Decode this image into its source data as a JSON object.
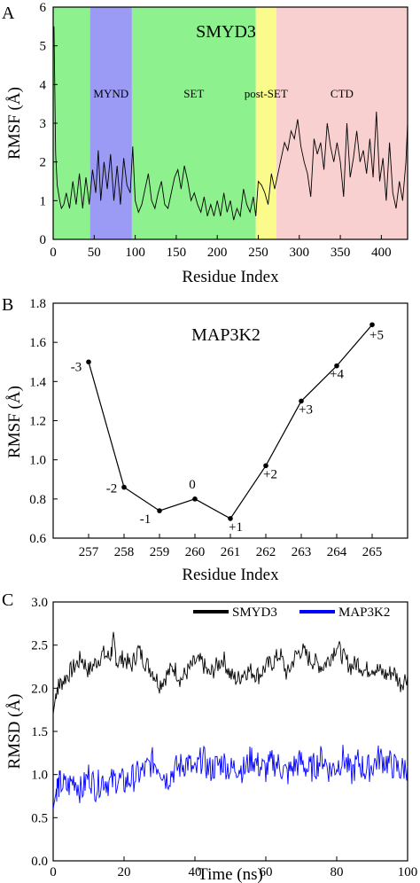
{
  "figure": {
    "panels": {
      "a": "A",
      "b": "B",
      "c": "C"
    }
  },
  "chart_data": [
    {
      "type": "line",
      "panel": "A",
      "title": "SMYD3",
      "xlabel": "Residue Index",
      "ylabel": "RMSF (Å)",
      "xlim": [
        0,
        432
      ],
      "ylim": [
        0,
        6
      ],
      "xticks": [
        "0",
        "50",
        "100",
        "150",
        "200",
        "250",
        "300",
        "350",
        "400"
      ],
      "yticks": [
        "0",
        "1",
        "2",
        "3",
        "4",
        "5",
        "6"
      ],
      "domains": [
        {
          "name": "",
          "start": 0,
          "end": 45,
          "color": "#8df28d"
        },
        {
          "name": "MYND",
          "start": 45,
          "end": 96,
          "color": "#9b9bf5"
        },
        {
          "name": "SET",
          "start": 96,
          "end": 247,
          "color": "#8df28d"
        },
        {
          "name": "post-SET",
          "start": 247,
          "end": 272,
          "color": "#fbfb8c"
        },
        {
          "name": "CTD",
          "start": 272,
          "end": 432,
          "color": "#f8d0d0"
        }
      ],
      "line_color": "#000000",
      "series": [
        {
          "x": [
            1,
            2,
            3,
            5,
            8,
            10,
            13,
            16,
            20,
            24,
            28,
            32,
            36,
            40,
            44,
            48,
            52,
            55,
            58,
            62,
            66,
            70,
            74,
            78,
            82,
            86,
            90,
            94,
            97,
            100,
            104,
            108,
            112,
            116,
            120,
            124,
            128,
            132,
            136,
            140,
            144,
            148,
            152,
            156,
            160,
            164,
            168,
            172,
            176,
            180,
            184,
            188,
            192,
            196,
            200,
            204,
            208,
            212,
            216,
            220,
            224,
            228,
            232,
            236,
            240,
            244,
            247,
            250,
            254,
            258,
            262,
            266,
            270,
            274,
            278,
            282,
            286,
            290,
            294,
            298,
            302,
            306,
            310,
            314,
            318,
            322,
            326,
            330,
            334,
            338,
            342,
            346,
            350,
            354,
            358,
            362,
            366,
            370,
            374,
            378,
            382,
            386,
            390,
            394,
            398,
            402,
            406,
            410,
            414,
            418,
            422,
            426,
            430,
            432
          ],
          "y": [
            5.5,
            3.8,
            2.2,
            1.4,
            1.0,
            0.8,
            0.9,
            1.2,
            0.8,
            1.5,
            0.9,
            1.7,
            0.8,
            1.6,
            0.9,
            1.8,
            1.2,
            2.3,
            1.0,
            2.0,
            1.3,
            2.2,
            1.0,
            1.9,
            0.9,
            2.1,
            1.4,
            1.2,
            2.4,
            1.0,
            0.7,
            0.9,
            1.3,
            1.7,
            1.0,
            0.8,
            1.2,
            1.5,
            0.9,
            0.8,
            1.2,
            1.6,
            1.8,
            1.3,
            1.9,
            1.5,
            1.0,
            1.2,
            0.9,
            0.7,
            1.1,
            0.6,
            0.9,
            0.6,
            1.0,
            0.6,
            1.2,
            0.7,
            1.0,
            0.5,
            0.8,
            0.6,
            1.3,
            0.9,
            0.7,
            1.1,
            0.6,
            1.5,
            1.4,
            1.2,
            0.9,
            1.7,
            1.3,
            1.7,
            2.1,
            2.5,
            2.3,
            2.8,
            2.6,
            3.1,
            2.4,
            2.0,
            1.7,
            1.1,
            2.6,
            2.2,
            2.5,
            1.8,
            3.0,
            2.4,
            2.0,
            2.5,
            2.0,
            1.1,
            3.0,
            1.6,
            2.1,
            2.8,
            2.0,
            2.3,
            1.7,
            2.6,
            1.6,
            3.3,
            1.5,
            2.1,
            1.0,
            2.5,
            1.2,
            0.8,
            1.5,
            1.0,
            2.0,
            3.0
          ]
        }
      ]
    },
    {
      "type": "line",
      "panel": "B",
      "title": "MAP3K2",
      "xlabel": "Residue Index",
      "ylabel": "RMSF (Å)",
      "ylim": [
        0.6,
        1.8
      ],
      "xticks": [
        "257",
        "258",
        "259",
        "260",
        "261",
        "262",
        "263",
        "264",
        "265"
      ],
      "yticks": [
        "0.6",
        "0.8",
        "1.0",
        "1.2",
        "1.4",
        "1.6",
        "1.8"
      ],
      "series": [
        {
          "x": [
            257,
            258,
            259,
            260,
            261,
            262,
            263,
            264,
            265
          ],
          "y": [
            1.5,
            0.86,
            0.74,
            0.8,
            0.7,
            0.97,
            1.3,
            1.48,
            1.69
          ],
          "point_labels": [
            "-3",
            "-2",
            "-1",
            "0",
            "+1",
            "+2",
            "+3",
            "+4",
            "+5"
          ]
        }
      ]
    },
    {
      "type": "line",
      "panel": "C",
      "xlabel": "Time (ns)",
      "ylabel": "RMSD (Å)",
      "xlim": [
        0,
        100
      ],
      "ylim": [
        0.0,
        3.0
      ],
      "xticks": [
        "0",
        "20",
        "40",
        "60",
        "80",
        "100"
      ],
      "yticks": [
        "0.0",
        "0.5",
        "1.0",
        "1.5",
        "2.0",
        "2.5",
        "3.0"
      ],
      "legend": "top-right",
      "series": [
        {
          "name": "SMYD3",
          "color": "#000000",
          "x": [
            0,
            1,
            2,
            4,
            6,
            8,
            10,
            12,
            14,
            16,
            17,
            18,
            20,
            22,
            24,
            26,
            28,
            30,
            32,
            34,
            36,
            38,
            40,
            42,
            44,
            46,
            48,
            50,
            52,
            54,
            56,
            58,
            60,
            62,
            64,
            66,
            68,
            70,
            72,
            74,
            76,
            78,
            80,
            82,
            84,
            86,
            88,
            90,
            92,
            94,
            96,
            98,
            100
          ],
          "y": [
            1.7,
            2.0,
            2.05,
            2.15,
            2.25,
            2.35,
            2.2,
            2.3,
            2.4,
            2.35,
            2.55,
            2.3,
            2.35,
            2.25,
            2.45,
            2.3,
            2.2,
            2.05,
            2.15,
            2.25,
            2.1,
            2.2,
            2.3,
            2.3,
            2.15,
            2.25,
            2.35,
            2.15,
            2.1,
            2.2,
            2.2,
            2.15,
            2.25,
            2.3,
            2.4,
            2.15,
            2.35,
            2.45,
            2.35,
            2.3,
            2.25,
            2.35,
            2.5,
            2.35,
            2.25,
            2.3,
            2.2,
            2.25,
            2.2,
            2.15,
            2.2,
            2.05,
            2.15
          ]
        },
        {
          "name": "MAP3K2",
          "color": "#0000ff",
          "x": [
            0,
            1,
            2,
            4,
            6,
            8,
            10,
            12,
            14,
            16,
            18,
            20,
            22,
            24,
            26,
            28,
            30,
            32,
            34,
            36,
            38,
            40,
            42,
            44,
            46,
            48,
            50,
            52,
            54,
            56,
            58,
            60,
            62,
            64,
            66,
            68,
            70,
            72,
            74,
            76,
            78,
            80,
            82,
            84,
            86,
            88,
            90,
            92,
            94,
            96,
            98,
            100
          ],
          "y": [
            0.6,
            0.85,
            0.9,
            0.85,
            0.95,
            0.8,
            1.0,
            0.85,
            0.95,
            0.9,
            0.95,
            0.9,
            0.95,
            1.0,
            1.05,
            1.15,
            1.1,
            0.95,
            1.05,
            1.1,
            1.15,
            1.0,
            1.2,
            1.05,
            1.1,
            1.15,
            1.05,
            1.1,
            1.05,
            1.2,
            1.1,
            1.05,
            1.15,
            1.1,
            1.0,
            1.1,
            1.15,
            1.05,
            1.1,
            1.2,
            1.05,
            1.1,
            1.2,
            1.0,
            1.15,
            1.05,
            1.1,
            1.2,
            1.15,
            1.1,
            1.05,
            1.1
          ]
        }
      ]
    }
  ]
}
